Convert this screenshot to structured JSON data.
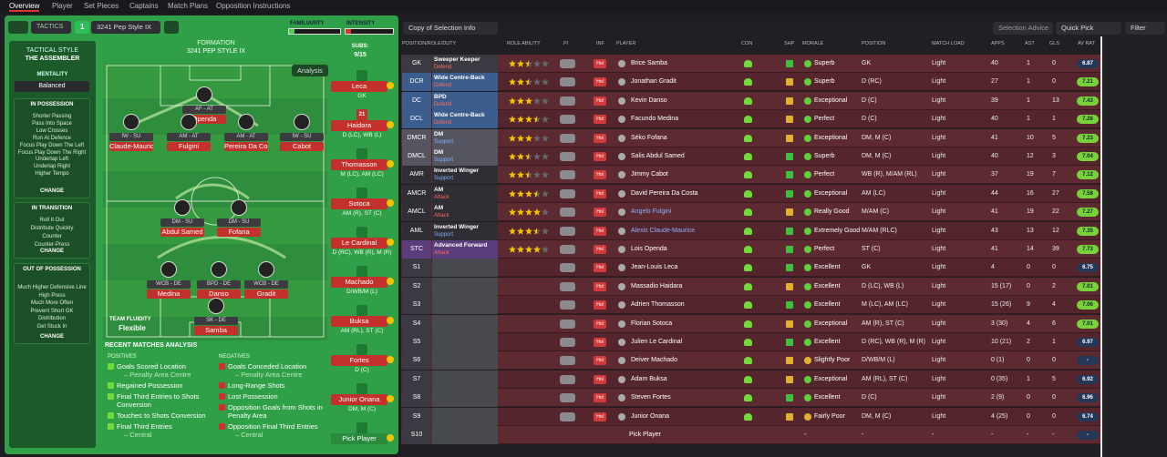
{
  "tabs": [
    "Overview",
    "Player",
    "Set Pieces",
    "Captains",
    "Match Plans",
    "Opposition Instructions"
  ],
  "tactic": {
    "label": "TACTICS",
    "slot": "1",
    "name": "3241 Pep Style IX",
    "familiarity": "FAMILIARITY",
    "intensity": "INTENSITY"
  },
  "sidebar": {
    "style_label": "TACTICAL STYLE",
    "style": "THE ASSEMBLER",
    "mentality_label": "MENTALITY",
    "mentality": "Balanced",
    "sections": [
      {
        "title": "IN POSSESSION",
        "items": [
          "Shorter Passing",
          "Pass Into Space",
          "Low Crosses",
          "Run At Defence",
          "Focus Play Down The Left",
          "Focus Play Down The Right",
          "Underlap Left",
          "Underlap Right",
          "Higher Tempo"
        ],
        "button": "CHANGE"
      },
      {
        "title": "IN TRANSITION",
        "items": [
          "Roll It Out",
          "Distribute Quickly",
          "Counter",
          "Counter-Press"
        ],
        "button": "CHANGE"
      },
      {
        "title": "OUT OF POSSESSION",
        "items": [
          "Much Higher Defensive Line",
          "High Press",
          "Much More Often",
          "Prevent Short GK",
          "Distribution",
          "Get Stuck In"
        ],
        "button": "CHANGE"
      }
    ]
  },
  "formation": {
    "label": "FORMATION",
    "name": "3241 PEP STYLE IX",
    "analysis": "Analysis",
    "fluidity_label": "TEAM FLUIDITY",
    "fluidity": "Flexible",
    "players": [
      {
        "role": "AF - AT",
        "name": "Openda"
      },
      {
        "role": "IW - SU",
        "name": "Claude-Maurice"
      },
      {
        "role": "AM - AT",
        "name": "Fulgini"
      },
      {
        "role": "AM - AT",
        "name": "Pereira Da Costa"
      },
      {
        "role": "IW - SU",
        "name": "Cabot"
      },
      {
        "role": "DM - SU",
        "name": "Abdul Samed"
      },
      {
        "role": "DM - SU",
        "name": "Fofana"
      },
      {
        "role": "WCB - DE",
        "name": "Medina"
      },
      {
        "role": "BPD - DE",
        "name": "Danso"
      },
      {
        "role": "WCB - DE",
        "name": "Gradit"
      },
      {
        "role": "SK - DE",
        "name": "Samba"
      }
    ]
  },
  "subs": {
    "label": "SUBS:",
    "count": "9/15",
    "players": [
      {
        "name": "Leca",
        "position": "GK"
      },
      {
        "name": "Haidara",
        "position": "D (LC), WB (L)",
        "badge": "21"
      },
      {
        "name": "Thomasson",
        "position": "M (LC), AM (LC)"
      },
      {
        "name": "Sotoca",
        "position": "AM (R), ST (C)"
      },
      {
        "name": "Le Cardinal",
        "position": "D (RC), WB (R), M (R)"
      },
      {
        "name": "Machado",
        "position": "D/WB/M (L)"
      },
      {
        "name": "Buksa",
        "position": "AM (RL), ST (C)"
      },
      {
        "name": "Fortes",
        "position": "D (C)"
      },
      {
        "name": "Junior Onana",
        "position": "DM, M (C)"
      },
      {
        "name": "Pick Player"
      }
    ]
  },
  "analysis": {
    "title": "RECENT MATCHES ANALYSIS",
    "positives_label": "POSITIVES",
    "negatives_label": "NEGATIVES",
    "positives": [
      {
        "text": "Goals Scored Location",
        "sub": "– Penalty Area Centre"
      },
      {
        "text": "Regained Possession"
      },
      {
        "text": "Final Third Entries to Shots Conversion"
      },
      {
        "text": "Touches to Shots Conversion"
      },
      {
        "text": "Final Third Entries",
        "sub": "– Central"
      }
    ],
    "negatives": [
      {
        "text": "Goals Conceded Location",
        "sub": "– Penalty Area Centre"
      },
      {
        "text": "Long-Range Shots"
      },
      {
        "text": "Lost Possession"
      },
      {
        "text": "Opposition Goals from Shots in Penalty Area"
      },
      {
        "text": "Opposition Final Third Entries",
        "sub": "– Central"
      }
    ]
  },
  "toolbar": {
    "copy": "Copy of Selection Info",
    "advice": "Selection Advice",
    "quick": "Quick Pick",
    "filter": "Filter"
  },
  "table": {
    "columns": [
      "POSITION/ROLE/DUTY",
      "ROLE ABILITY",
      "PI",
      "INF",
      "PLAYER",
      "CON",
      "SHP",
      "MORALE",
      "POSITION",
      "MATCH LOAD",
      "APPS",
      "AST",
      "GLS",
      "AV RAT"
    ],
    "rows": [
      {
        "pos": "GK",
        "color": "#3a3a42",
        "role": "Sweeper Keeper",
        "duty": "Defend",
        "ability": 2.5,
        "inf": "Hol",
        "player": "Brice Samba",
        "shp_color": "#3fbf3f",
        "morale": "Superb",
        "morale_color": "#5fcf3a",
        "position": "GK",
        "load": "Light",
        "apps": 40,
        "ast": 1,
        "gls": 0,
        "rating": 6.87
      },
      {
        "pos": "DCR",
        "color": "#3b5d8e",
        "role": "Wide Centre-Back",
        "duty": "Defend",
        "ability": 2.5,
        "inf": "Hol",
        "player": "Jonathan Gradit",
        "shp_color": "#e0b030",
        "morale": "Superb",
        "morale_color": "#5fcf3a",
        "position": "D (RC)",
        "load": "Light",
        "apps": 27,
        "ast": 1,
        "gls": 0,
        "rating": 7.21
      },
      {
        "pos": "DC",
        "color": "#3b5d8e",
        "role": "BPD",
        "duty": "Defend",
        "ability": 3,
        "inf": "Hol",
        "player": "Kevin Danso",
        "shp_color": "#e0b030",
        "morale": "Exceptional",
        "morale_color": "#5fcf3a",
        "position": "D (C)",
        "load": "Light",
        "apps": 39,
        "ast": 1,
        "gls": 13,
        "rating": 7.43
      },
      {
        "pos": "DCL",
        "color": "#3b5d8e",
        "role": "Wide Centre-Back",
        "duty": "Defend",
        "ability": 3.5,
        "inf": "Hol",
        "player": "Facundo Medina",
        "shp_color": "#e0b030",
        "morale": "Perfect",
        "morale_color": "#5fcf3a",
        "position": "D (C)",
        "load": "Light",
        "apps": 40,
        "ast": 1,
        "gls": 1,
        "rating": 7.26
      },
      {
        "pos": "DMCR",
        "color": "#55555f",
        "role": "DM",
        "duty": "Support",
        "ability": 3,
        "inf": "Hol",
        "player": "Séko Fofana",
        "shp_color": "#e0b030",
        "morale": "Exceptional",
        "morale_color": "#5fcf3a",
        "position": "DM, M (C)",
        "load": "Light",
        "apps": 41,
        "ast": 10,
        "gls": 5,
        "rating": 7.23
      },
      {
        "pos": "DMCL",
        "color": "#55555f",
        "role": "DM",
        "duty": "Support",
        "ability": 2.5,
        "inf": "Hol",
        "player": "Salis Abdul Samed",
        "shp_color": "#3fbf3f",
        "morale": "Superb",
        "morale_color": "#5fcf3a",
        "position": "DM, M (C)",
        "load": "Light",
        "apps": 40,
        "ast": 12,
        "gls": 3,
        "rating": 7.04
      },
      {
        "pos": "AMR",
        "color": "#2e2e34",
        "role": "Inverted Winger",
        "duty": "Support",
        "ability": 2.5,
        "inf": "Hol",
        "player": "Jimmy Cabot",
        "shp_color": "#3fbf3f",
        "morale": "Perfect",
        "morale_color": "#5fcf3a",
        "position": "WB (R), M/AM (RL)",
        "load": "Light",
        "apps": 37,
        "ast": 19,
        "gls": 7,
        "rating": 7.12
      },
      {
        "pos": "AMCR",
        "color": "#2e2e34",
        "role": "AM",
        "duty": "Attack",
        "ability": 3.5,
        "inf": "Hol",
        "player": "David Pereira Da Costa",
        "shp_color": "#3fbf3f",
        "morale": "Exceptional",
        "morale_color": "#5fcf3a",
        "position": "AM (LC)",
        "load": "Light",
        "apps": 44,
        "ast": 16,
        "gls": 27,
        "rating": 7.58
      },
      {
        "pos": "AMCL",
        "color": "#2e2e34",
        "role": "AM",
        "duty": "Attack",
        "ability": 4,
        "inf": "Hol",
        "player": "Angelo Fulgini",
        "player_color": "#8fb0ff",
        "shp_color": "#e0b030",
        "morale": "Really Good",
        "morale_color": "#5fcf3a",
        "position": "M/AM (C)",
        "load": "Light",
        "apps": 41,
        "ast": 19,
        "gls": 22,
        "rating": 7.27
      },
      {
        "pos": "AML",
        "color": "#2e2e34",
        "role": "Inverted Winger",
        "duty": "Support",
        "ability": 3.5,
        "inf": "Hol",
        "player": "Alexis Claude-Maurice",
        "player_color": "#8fb0ff",
        "shp_color": "#3fbf3f",
        "morale": "Extremely Good",
        "morale_color": "#5fcf3a",
        "position": "M/AM (RLC)",
        "load": "Light",
        "apps": 43,
        "ast": 13,
        "gls": 12,
        "rating": 7.35
      },
      {
        "pos": "STC",
        "color": "#5b3c7d",
        "role": "Advanced Forward",
        "duty": "Attack",
        "ability": 4,
        "inf": "Hol",
        "player": "Lois Openda",
        "shp_color": "#3fbf3f",
        "morale": "Perfect",
        "morale_color": "#5fcf3a",
        "position": "ST (C)",
        "load": "Light",
        "apps": 41,
        "ast": 14,
        "gls": 39,
        "rating": 7.73
      },
      {
        "pos": "S1",
        "color": "#3a3a42",
        "inf": "Hol",
        "player": "Jean-Louis Leca",
        "shp_color": "#3fbf3f",
        "morale": "Excellent",
        "morale_color": "#5fcf3a",
        "position": "GK",
        "load": "Light",
        "apps": 4,
        "ast": 0,
        "gls": 0,
        "rating": 6.75
      },
      {
        "pos": "S2",
        "color": "#3a3a42",
        "inf": "Hol",
        "player": "Massadio Haidara",
        "shp_color": "#e0b030",
        "morale": "Excellent",
        "morale_color": "#5fcf3a",
        "position": "D (LC), WB (L)",
        "load": "Light",
        "apps": "15 (17)",
        "ast": 0,
        "gls": 2,
        "rating": 7.01
      },
      {
        "pos": "S3",
        "color": "#3a3a42",
        "inf": "Hol",
        "player": "Adrien Thomasson",
        "shp_color": "#3fbf3f",
        "morale": "Excellent",
        "morale_color": "#5fcf3a",
        "position": "M (LC), AM (LC)",
        "load": "Light",
        "apps": "15 (26)",
        "ast": 9,
        "gls": 4,
        "rating": 7.06
      },
      {
        "pos": "S4",
        "color": "#3a3a42",
        "inf": "Hol",
        "player": "Florian Sotoca",
        "shp_color": "#e0b030",
        "morale": "Exceptional",
        "morale_color": "#5fcf3a",
        "position": "AM (R), ST (C)",
        "load": "Light",
        "apps": "3 (30)",
        "ast": 4,
        "gls": 6,
        "rating": 7.01
      },
      {
        "pos": "S5",
        "color": "#3a3a42",
        "inf": "Hol",
        "player": "Julien Le Cardinal",
        "shp_color": "#3fbf3f",
        "morale": "Excellent",
        "morale_color": "#5fcf3a",
        "position": "D (RC), WB (R), M (R)",
        "load": "Light",
        "apps": "10 (21)",
        "ast": 2,
        "gls": 1,
        "rating": 6.97
      },
      {
        "pos": "S6",
        "color": "#3a3a42",
        "inf": "Hol",
        "player": "Deiver Machado",
        "shp_color": "#e0b030",
        "morale": "Slightly Poor",
        "morale_color": "#e0b030",
        "position": "D/WB/M (L)",
        "load": "Light",
        "apps": "0 (1)",
        "ast": 0,
        "gls": 0,
        "rating": "-"
      },
      {
        "pos": "S7",
        "color": "#3a3a42",
        "inf": "Hol",
        "player": "Adam Buksa",
        "shp_color": "#e0b030",
        "morale": "Exceptional",
        "morale_color": "#5fcf3a",
        "position": "AM (RL), ST (C)",
        "load": "Light",
        "apps": "0 (35)",
        "ast": 1,
        "gls": 5,
        "rating": 6.92
      },
      {
        "pos": "S8",
        "color": "#3a3a42",
        "inf": "Hol",
        "player": "Steven Fortes",
        "shp_color": "#3fbf3f",
        "morale": "Excellent",
        "morale_color": "#5fcf3a",
        "position": "D (C)",
        "load": "Light",
        "apps": "2 (9)",
        "ast": 0,
        "gls": 0,
        "rating": 6.96
      },
      {
        "pos": "S9",
        "color": "#3a3a42",
        "inf": "Hol",
        "player": "Junior Onana",
        "shp_color": "#e0b030",
        "morale": "Fairly Poor",
        "morale_color": "#e0b030",
        "position": "DM, M (C)",
        "load": "Light",
        "apps": "4 (25)",
        "ast": 0,
        "gls": 0,
        "rating": 6.74
      },
      {
        "pos": "S10",
        "color": "#3a3a42",
        "player": "Pick Player",
        "morale": "-",
        "position": "-",
        "load": "-",
        "apps": "-",
        "ast": "-",
        "gls": "-",
        "rating": "-"
      }
    ]
  }
}
